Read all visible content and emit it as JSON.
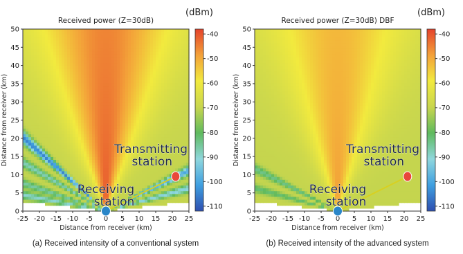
{
  "colors": {
    "background": "#ffffff",
    "transmitter": "#e8473a",
    "receiver": "#2a86c8",
    "link": "#d8d020",
    "station_label": "#1e2a44"
  },
  "colorbar": {
    "unit": "(dBm)",
    "range": [
      -112,
      -38
    ],
    "ticks": [
      "-40",
      "-50",
      "-60",
      "-70",
      "-80",
      "-90",
      "-100",
      "-110"
    ],
    "colormap": [
      "#2e4fb0",
      "#3f9fe0",
      "#8fd7dd",
      "#5fba5e",
      "#c8d64e",
      "#f2ea3e",
      "#f3a139",
      "#e5432b"
    ]
  },
  "station_labels": {
    "transmitter": [
      "Transmitting",
      "station"
    ],
    "receiver": [
      "Receiving",
      "station"
    ]
  },
  "chart_data": [
    {
      "type": "heatmap",
      "title": "Received power (Z=30dB)",
      "xlabel": "Distance from receiver (km)",
      "ylabel": "Distance from receiver (km)",
      "xlim": [
        -25,
        25
      ],
      "ylim": [
        0,
        50
      ],
      "x_ticks": [
        "-25",
        "-20",
        "-15",
        "-10",
        "-5",
        "0",
        "5",
        "10",
        "15",
        "20",
        "25"
      ],
      "y_ticks": [
        "0",
        "5",
        "10",
        "15",
        "20",
        "25",
        "30",
        "35",
        "40",
        "45",
        "50"
      ],
      "value_unit": "dBm",
      "transmitter_position_km": [
        21,
        9.5
      ],
      "receiver_position_km": [
        0,
        0
      ],
      "main_lobe_direction_deg": 90,
      "main_lobe_peak_dbm": -40,
      "background_level_dbm": -70,
      "interference_bands": [
        {
          "direction_deg": 141,
          "level_dbm": -105
        },
        {
          "direction_deg": 152,
          "level_dbm": -88
        },
        {
          "direction_deg": 163,
          "level_dbm": -86
        },
        {
          "direction_deg": 170,
          "level_dbm": -90
        },
        {
          "direction_deg": 24,
          "level_dbm": -100
        },
        {
          "direction_deg": 14,
          "level_dbm": -92
        }
      ],
      "caption": "(a) Received intensity of a conventional system"
    },
    {
      "type": "heatmap",
      "title": "Received power (Z=30dB) DBF",
      "xlabel": "Distance from receiver (km)",
      "ylabel": "Distance from receiver (km)",
      "xlim": [
        -25,
        25
      ],
      "ylim": [
        0,
        50
      ],
      "x_ticks": [
        "-25",
        "-20",
        "-15",
        "-10",
        "-5",
        "0",
        "5",
        "10",
        "15",
        "20",
        "25"
      ],
      "y_ticks": [
        "0",
        "5",
        "10",
        "15",
        "20",
        "25",
        "30",
        "35",
        "40",
        "45",
        "50"
      ],
      "value_unit": "dBm",
      "transmitter_position_km": [
        21,
        9.5
      ],
      "receiver_position_km": [
        0,
        0
      ],
      "main_lobe_direction_deg": 90,
      "main_lobe_peak_dbm": -48,
      "background_level_dbm": -70,
      "interference_bands": [
        {
          "direction_deg": 155,
          "level_dbm": -84
        },
        {
          "direction_deg": 166,
          "level_dbm": -82
        }
      ],
      "caption": "(b) Received intensity of the advanced system"
    }
  ]
}
